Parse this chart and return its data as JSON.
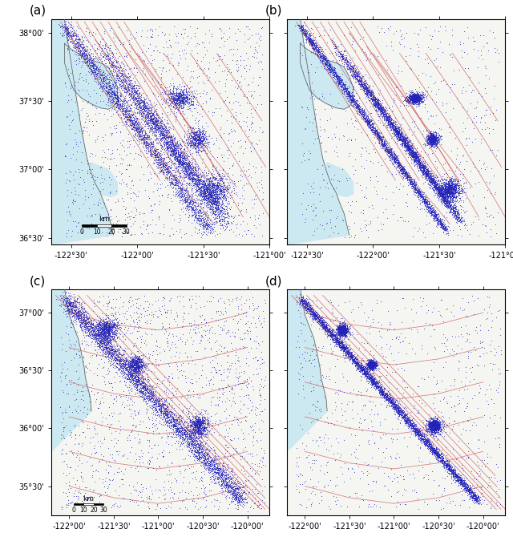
{
  "panels": [
    "(a)",
    "(b)",
    "(c)",
    "(d)"
  ],
  "top_panels": {
    "lon_min": -122.65,
    "lon_max": -121.0,
    "lat_min": 36.45,
    "lat_max": 38.1,
    "xticks": [
      -122.5,
      -122.0,
      -121.5,
      -121.0
    ],
    "xlabels": [
      "-122°30'",
      "-122°00'",
      "-121°30'",
      "-121°00'"
    ],
    "yticks": [
      36.5,
      37.0,
      37.5,
      38.0
    ],
    "ylabels": [
      "36°30'",
      "37°00'",
      "37°30'",
      "38°00'"
    ]
  },
  "bottom_panels": {
    "lon_min": -122.2,
    "lon_max": -119.75,
    "lat_min": 35.25,
    "lat_max": 37.2,
    "xticks": [
      -122.0,
      -121.5,
      -121.0,
      -120.5,
      -120.0
    ],
    "xlabels": [
      "-122°00'",
      "-121°30'",
      "-121°00'",
      "-120°30'",
      "-120°00'"
    ],
    "yticks": [
      35.5,
      36.0,
      36.5,
      37.0
    ],
    "ylabels": [
      "35°30'",
      "36°00'",
      "36°30'",
      "37°00'"
    ]
  },
  "ocean_color": "#cce8f0",
  "land_color": "#f5f5f2",
  "terrain_color": "#eeebe4",
  "dot_color_a": "#2222bb",
  "dot_color_b": "#3333cc",
  "fault_color": "#cc5555",
  "coast_color": "#555555",
  "font_size": 7,
  "panel_label_size": 11
}
